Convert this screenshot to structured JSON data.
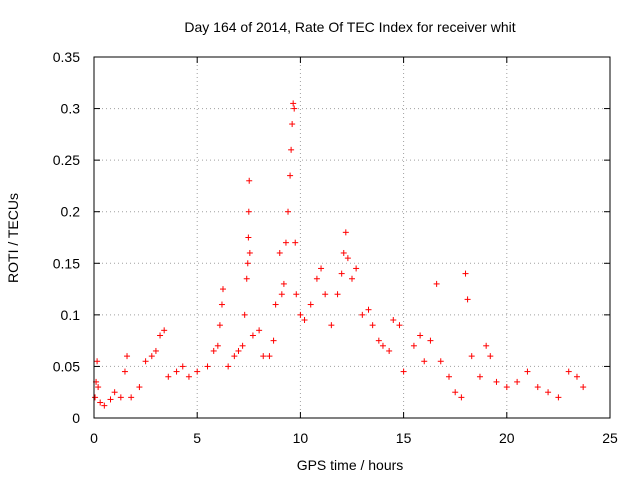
{
  "chart_data": {
    "type": "scatter",
    "title": "Day 164 of 2014, Rate Of TEC Index for receiver whit",
    "xlabel": "GPS time / hours",
    "ylabel": "ROTI / TECUs",
    "xlim": [
      0,
      25
    ],
    "ylim": [
      0,
      0.35
    ],
    "xticks": [
      0,
      5,
      10,
      15,
      20,
      25
    ],
    "yticks": [
      0,
      0.05,
      0.1,
      0.15,
      0.2,
      0.25,
      0.3,
      0.35
    ],
    "xtick_labels": [
      "0",
      "5",
      "10",
      "15",
      "20",
      "25"
    ],
    "ytick_labels": [
      "0",
      "0.05",
      "0.1",
      "0.15",
      "0.2",
      "0.25",
      "0.3",
      "0.35"
    ],
    "grid": true,
    "marker": "plus",
    "color": "#ff0000",
    "series": [
      {
        "values": [
          [
            0.05,
            0.02
          ],
          [
            0.1,
            0.035
          ],
          [
            0.15,
            0.055
          ],
          [
            0.2,
            0.03
          ],
          [
            0.3,
            0.015
          ],
          [
            0.5,
            0.012
          ],
          [
            0.8,
            0.018
          ],
          [
            1.0,
            0.025
          ],
          [
            1.3,
            0.02
          ],
          [
            1.5,
            0.045
          ],
          [
            1.6,
            0.06
          ],
          [
            1.8,
            0.02
          ],
          [
            2.2,
            0.03
          ],
          [
            2.5,
            0.055
          ],
          [
            2.8,
            0.06
          ],
          [
            3.0,
            0.065
          ],
          [
            3.2,
            0.08
          ],
          [
            3.4,
            0.085
          ],
          [
            3.6,
            0.04
          ],
          [
            4.0,
            0.045
          ],
          [
            4.3,
            0.05
          ],
          [
            4.6,
            0.04
          ],
          [
            5.0,
            0.045
          ],
          [
            5.5,
            0.05
          ],
          [
            5.8,
            0.065
          ],
          [
            6.0,
            0.07
          ],
          [
            6.1,
            0.09
          ],
          [
            6.2,
            0.11
          ],
          [
            6.25,
            0.125
          ],
          [
            6.5,
            0.05
          ],
          [
            6.8,
            0.06
          ],
          [
            7.0,
            0.065
          ],
          [
            7.2,
            0.07
          ],
          [
            7.3,
            0.1
          ],
          [
            7.4,
            0.135
          ],
          [
            7.45,
            0.15
          ],
          [
            7.48,
            0.175
          ],
          [
            7.5,
            0.2
          ],
          [
            7.52,
            0.23
          ],
          [
            7.55,
            0.16
          ],
          [
            7.7,
            0.08
          ],
          [
            8.0,
            0.085
          ],
          [
            8.2,
            0.06
          ],
          [
            8.5,
            0.06
          ],
          [
            8.7,
            0.075
          ],
          [
            8.8,
            0.11
          ],
          [
            9.0,
            0.16
          ],
          [
            9.1,
            0.12
          ],
          [
            9.2,
            0.13
          ],
          [
            9.3,
            0.17
          ],
          [
            9.4,
            0.2
          ],
          [
            9.5,
            0.235
          ],
          [
            9.55,
            0.26
          ],
          [
            9.6,
            0.285
          ],
          [
            9.65,
            0.305
          ],
          [
            9.7,
            0.3
          ],
          [
            9.75,
            0.17
          ],
          [
            9.8,
            0.12
          ],
          [
            10.0,
            0.1
          ],
          [
            10.2,
            0.095
          ],
          [
            10.5,
            0.11
          ],
          [
            10.8,
            0.135
          ],
          [
            11.0,
            0.145
          ],
          [
            11.2,
            0.12
          ],
          [
            11.5,
            0.09
          ],
          [
            11.8,
            0.12
          ],
          [
            12.0,
            0.14
          ],
          [
            12.1,
            0.16
          ],
          [
            12.2,
            0.18
          ],
          [
            12.3,
            0.155
          ],
          [
            12.5,
            0.135
          ],
          [
            12.7,
            0.145
          ],
          [
            13.0,
            0.1
          ],
          [
            13.3,
            0.105
          ],
          [
            13.5,
            0.09
          ],
          [
            13.8,
            0.075
          ],
          [
            14.0,
            0.07
          ],
          [
            14.3,
            0.065
          ],
          [
            14.5,
            0.095
          ],
          [
            14.8,
            0.09
          ],
          [
            15.0,
            0.045
          ],
          [
            15.5,
            0.07
          ],
          [
            15.8,
            0.08
          ],
          [
            16.0,
            0.055
          ],
          [
            16.3,
            0.075
          ],
          [
            16.6,
            0.13
          ],
          [
            16.8,
            0.055
          ],
          [
            17.2,
            0.04
          ],
          [
            17.5,
            0.025
          ],
          [
            17.8,
            0.02
          ],
          [
            18.0,
            0.14
          ],
          [
            18.1,
            0.115
          ],
          [
            18.3,
            0.06
          ],
          [
            18.7,
            0.04
          ],
          [
            19.0,
            0.07
          ],
          [
            19.2,
            0.06
          ],
          [
            19.5,
            0.035
          ],
          [
            20.0,
            0.03
          ],
          [
            20.5,
            0.035
          ],
          [
            21.0,
            0.045
          ],
          [
            21.5,
            0.03
          ],
          [
            22.0,
            0.025
          ],
          [
            22.5,
            0.02
          ],
          [
            23.0,
            0.045
          ],
          [
            23.4,
            0.04
          ],
          [
            23.7,
            0.03
          ]
        ]
      }
    ]
  }
}
